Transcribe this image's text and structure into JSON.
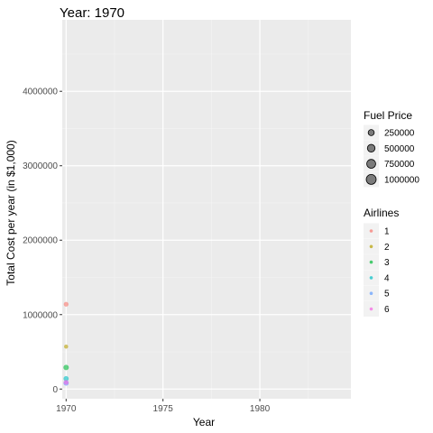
{
  "title": "Year: 1970",
  "chart_data": {
    "type": "scatter",
    "xlabel": "Year",
    "ylabel": "Total Cost per year (in $1,000)",
    "xlim": [
      1969.8,
      1984.7
    ],
    "ylim": [
      -130000,
      4960000
    ],
    "x_ticks": [
      1970,
      1975,
      1980
    ],
    "x_tick_labels": [
      "1970",
      "1975",
      "1980"
    ],
    "y_ticks": [
      0,
      1000000,
      2000000,
      3000000,
      4000000
    ],
    "y_tick_labels": [
      "0",
      "1000000",
      "2000000",
      "3000000",
      "4000000"
    ],
    "grid": true,
    "legend_placement": "right",
    "size_legend": {
      "title": "Fuel Price",
      "entries": [
        {
          "label": "250000",
          "value": 250000
        },
        {
          "label": "500000",
          "value": 500000
        },
        {
          "label": "750000",
          "value": 750000
        },
        {
          "label": "1000000",
          "value": 1000000
        }
      ]
    },
    "color_legend": {
      "title": "Airlines",
      "entries": [
        {
          "label": "1",
          "color": "#F8766D"
        },
        {
          "label": "2",
          "color": "#B79F00"
        },
        {
          "label": "3",
          "color": "#00BA38"
        },
        {
          "label": "4",
          "color": "#00BFC4"
        },
        {
          "label": "5",
          "color": "#619CFF"
        },
        {
          "label": "6",
          "color": "#F564E3"
        }
      ]
    },
    "series": [
      {
        "name": "1",
        "color": "#F8766D",
        "points": [
          {
            "x": 1970,
            "y": 1140000,
            "size": 110000
          }
        ]
      },
      {
        "name": "2",
        "color": "#B79F00",
        "points": [
          {
            "x": 1970,
            "y": 570000,
            "size": 60000
          }
        ]
      },
      {
        "name": "3",
        "color": "#00BA38",
        "points": [
          {
            "x": 1970,
            "y": 290000,
            "size": 180000
          }
        ]
      },
      {
        "name": "4",
        "color": "#00BFC4",
        "points": [
          {
            "x": 1970,
            "y": 140000,
            "size": 150000
          }
        ]
      },
      {
        "name": "5",
        "color": "#619CFF",
        "points": [
          {
            "x": 1970,
            "y": 80000,
            "size": 170000
          }
        ]
      },
      {
        "name": "6",
        "color": "#F564E3",
        "points": [
          {
            "x": 1970,
            "y": 90000,
            "size": 120000
          }
        ]
      }
    ]
  }
}
